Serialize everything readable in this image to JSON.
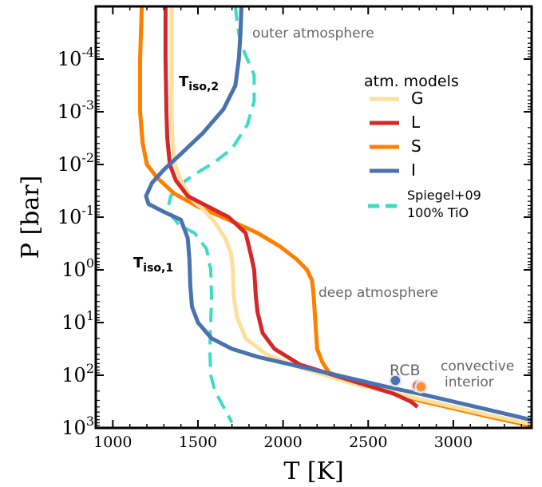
{
  "chart_data": {
    "type": "line",
    "xlabel": "T [K]",
    "ylabel": "P [bar]",
    "xlim": [
      900,
      3460
    ],
    "ylim_log10_bar": [
      -5,
      3
    ],
    "y_scale": "log",
    "y_inverted": true,
    "x_ticks": [
      1000,
      1500,
      2000,
      2500,
      3000
    ],
    "y_ticks": [
      {
        "mant": "10",
        "exp": "-4"
      },
      {
        "mant": "10",
        "exp": "-3"
      },
      {
        "mant": "10",
        "exp": "-2"
      },
      {
        "mant": "10",
        "exp": "-1"
      },
      {
        "mant": "10",
        "exp": "0"
      },
      {
        "mant": "10",
        "exp": "1"
      },
      {
        "mant": "10",
        "exp": "2"
      },
      {
        "mant": "10",
        "exp": "3"
      }
    ],
    "legend": {
      "title": "atm. models",
      "placement": "upper-right",
      "entries": [
        {
          "label": "G",
          "series": "G"
        },
        {
          "label": "L",
          "series": "L"
        },
        {
          "label": "S",
          "series": "S"
        },
        {
          "label": "I",
          "series": "I"
        },
        {
          "label": "Spiegel+09",
          "label2": "100% TiO",
          "series": "Spiegel"
        }
      ]
    },
    "annotations": {
      "outer": "outer atmosphere",
      "deep": "deep atmosphere",
      "rcb": "RCB",
      "conv1": "convective",
      "conv2": "interior",
      "tiso2_main": "T",
      "tiso2_sub": "iso,2",
      "tiso1_main": "T",
      "tiso1_sub": "iso,1"
    },
    "series": [
      {
        "name": "G",
        "color": "#fde09b",
        "dash": false,
        "T": [
          1345,
          1345,
          1345,
          1350,
          1365,
          1400,
          1460,
          1530,
          1600,
          1660,
          1695,
          1705,
          1710,
          1730,
          1780,
          1900,
          2050,
          2200,
          2400,
          2600,
          2800,
          3000,
          3200,
          3460
        ],
        "logP": [
          -5.0,
          -4.0,
          -3.0,
          -2.5,
          -2.0,
          -1.7,
          -1.35,
          -1.15,
          -0.9,
          -0.6,
          -0.3,
          0.0,
          0.5,
          0.9,
          1.3,
          1.6,
          1.8,
          1.95,
          2.15,
          2.3,
          2.45,
          2.6,
          2.75,
          2.93
        ]
      },
      {
        "name": "L",
        "color": "#d62728",
        "dash": false,
        "T": [
          1310,
          1310,
          1315,
          1320,
          1335,
          1370,
          1440,
          1560,
          1680,
          1780,
          1810,
          1830,
          1840,
          1850,
          1880,
          1950,
          2100,
          2250,
          2450,
          2650,
          2750,
          2790
        ],
        "logP": [
          -5.0,
          -4.0,
          -3.0,
          -2.5,
          -2.0,
          -1.7,
          -1.4,
          -1.2,
          -1.0,
          -0.7,
          -0.3,
          0.0,
          0.5,
          0.8,
          1.2,
          1.5,
          1.8,
          1.95,
          2.15,
          2.35,
          2.5,
          2.6
        ]
      },
      {
        "name": "S",
        "color": "#ff8000",
        "dash": false,
        "T": [
          1170,
          1160,
          1160,
          1175,
          1200,
          1260,
          1360,
          1500,
          1680,
          1850,
          1980,
          2080,
          2140,
          2170,
          2180,
          2190,
          2200,
          2230,
          2270,
          2400,
          2600,
          2800,
          3000,
          3200,
          3460
        ],
        "logP": [
          -5.0,
          -4.0,
          -3.0,
          -2.4,
          -2.0,
          -1.75,
          -1.45,
          -1.2,
          -0.95,
          -0.7,
          -0.45,
          -0.2,
          0.0,
          0.2,
          0.5,
          1.0,
          1.5,
          1.75,
          1.95,
          2.1,
          2.3,
          2.48,
          2.63,
          2.78,
          2.96
        ]
      },
      {
        "name": "I",
        "color": "#4a72b0",
        "dash": false,
        "T": [
          1755,
          1750,
          1740,
          1720,
          1650,
          1530,
          1400,
          1300,
          1230,
          1195,
          1210,
          1300,
          1400,
          1440,
          1450,
          1455,
          1465,
          1500,
          1580,
          1700,
          1850,
          2050,
          2250,
          2450,
          2650,
          2800,
          3000,
          3200,
          3460
        ],
        "logP": [
          -5.0,
          -4.5,
          -4.0,
          -3.5,
          -3.05,
          -2.6,
          -2.2,
          -1.9,
          -1.65,
          -1.4,
          -1.25,
          -1.1,
          -0.95,
          -0.6,
          -0.2,
          0.3,
          0.7,
          1.0,
          1.3,
          1.5,
          1.65,
          1.8,
          1.95,
          2.1,
          2.25,
          2.35,
          2.5,
          2.65,
          2.85
        ]
      },
      {
        "name": "Spiegel",
        "color": "#3ddbc4",
        "dash": true,
        "T": [
          1720,
          1730,
          1750,
          1790,
          1830,
          1830,
          1790,
          1700,
          1600,
          1500,
          1430,
          1380,
          1340,
          1330,
          1340,
          1390,
          1480,
          1550,
          1575,
          1580,
          1575,
          1570,
          1575,
          1600,
          1650,
          1700
        ],
        "logP": [
          -5.0,
          -4.7,
          -4.3,
          -4.0,
          -3.7,
          -3.2,
          -2.75,
          -2.3,
          -2.05,
          -1.85,
          -1.7,
          -1.55,
          -1.4,
          -1.25,
          -1.05,
          -0.85,
          -0.7,
          -0.4,
          0.0,
          0.5,
          1.0,
          1.5,
          2.0,
          2.3,
          2.6,
          2.9
        ]
      }
    ],
    "points": [
      {
        "name": "RCB I",
        "T": 2660,
        "logP": 2.1,
        "color": "#4a72b0"
      },
      {
        "name": "RCB L",
        "T": 2790,
        "logP": 2.2,
        "color": "#e0505a"
      },
      {
        "name": "RCB S",
        "T": 2810,
        "logP": 2.22,
        "color": "#ff8c3a"
      }
    ]
  }
}
